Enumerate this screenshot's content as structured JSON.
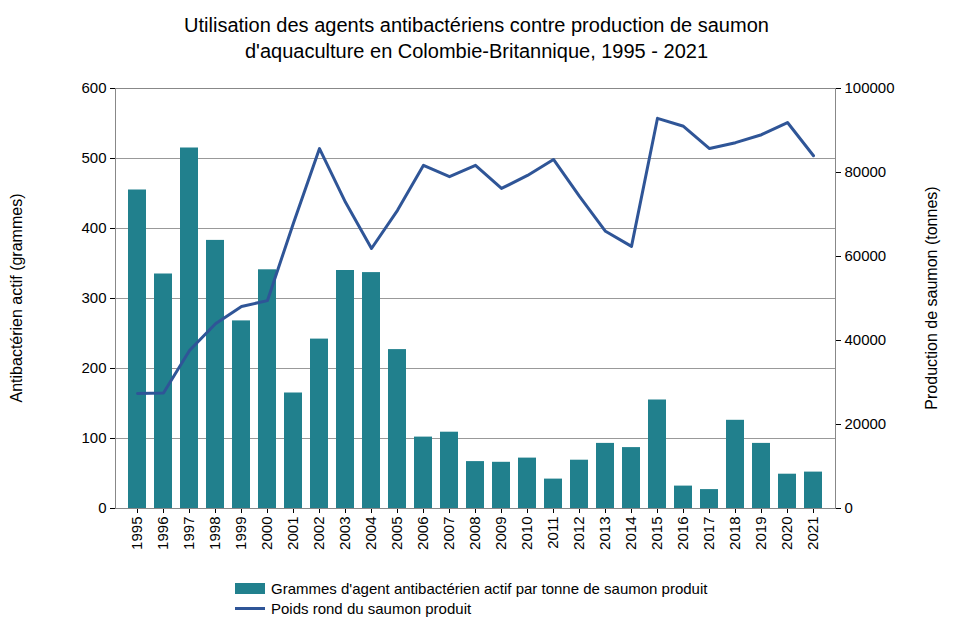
{
  "chart_data": {
    "type": "bar",
    "title": "Utilisation des agents antibactériens contre production de saumon d'aquaculture en Colombie-Britannique, 1995 - 2021",
    "y_label": "Antibactérien actif (grammes)",
    "y2_label": "Production de saumon (tonnes)",
    "categories": [
      "1995",
      "1996",
      "1997",
      "1998",
      "1999",
      "2000",
      "2001",
      "2002",
      "2003",
      "2004",
      "2005",
      "2006",
      "2007",
      "2008",
      "2009",
      "2010",
      "2011",
      "2012",
      "2013",
      "2014",
      "2015",
      "2016",
      "2017",
      "2018",
      "2019",
      "2020",
      "2021"
    ],
    "series": [
      {
        "name": "Grammes d'agent antibactérien actif par tonne de saumon produit",
        "type": "bar",
        "color": "#21808d",
        "values": [
          455,
          335,
          515,
          383,
          268,
          341,
          165,
          242,
          340,
          337,
          227,
          102,
          109,
          67,
          66,
          72,
          42,
          69,
          93,
          87,
          155,
          32,
          27,
          126,
          93,
          49,
          52
        ]
      },
      {
        "name": "Poids rond du saumon produit",
        "type": "line",
        "axis": "y2",
        "color": "#2f5597",
        "values": [
          27400,
          27500,
          37600,
          44000,
          48100,
          49500,
          68000,
          85700,
          72900,
          61900,
          71000,
          81700,
          79000,
          81700,
          76200,
          79300,
          83100,
          74300,
          66000,
          62400,
          92900,
          91000,
          85700,
          87100,
          89000,
          91900,
          84000
        ]
      }
    ],
    "ylim": [
      0,
      600
    ],
    "yticks": [
      0,
      100,
      200,
      300,
      400,
      500,
      600
    ],
    "y2lim": [
      0,
      100000
    ],
    "y2ticks": [
      0,
      20000,
      40000,
      60000,
      80000,
      100000
    ],
    "grid": true,
    "legend": "bottom"
  }
}
